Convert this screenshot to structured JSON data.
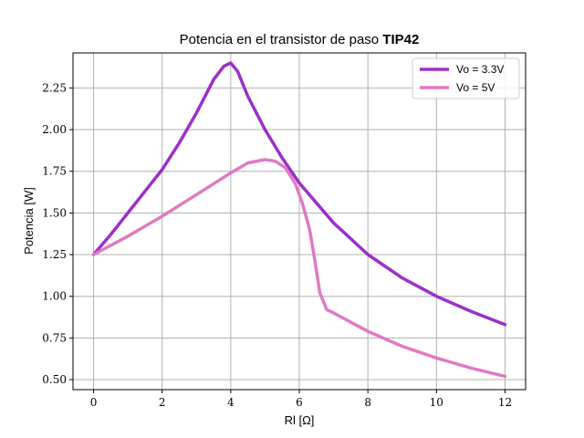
{
  "chart_data": {
    "type": "line",
    "title": "Potencia en el transistor de paso",
    "title_bold": "TIP42",
    "xlabel": "Rl [Ω]",
    "ylabel": "Potencia [W]",
    "xlim": [
      -0.6,
      12.6
    ],
    "ylim": [
      0.44,
      2.46
    ],
    "x_ticks": [
      0,
      2,
      4,
      6,
      8,
      10,
      12
    ],
    "x_tick_labels": [
      "0",
      "2",
      "4",
      "6",
      "8",
      "10",
      "12"
    ],
    "y_ticks": [
      0.5,
      0.75,
      1.0,
      1.25,
      1.5,
      1.75,
      2.0,
      2.25
    ],
    "y_tick_labels": [
      "0.50",
      "0.75",
      "1.00",
      "1.25",
      "1.50",
      "1.75",
      "2.00",
      "2.25"
    ],
    "grid": true,
    "legend_position": "top-right",
    "series": [
      {
        "name": "Vo = 3.3V",
        "color": "#9b30c8",
        "x": [
          0,
          0.5,
          1,
          1.5,
          2,
          2.5,
          3,
          3.5,
          3.8,
          4.0,
          4.2,
          4.5,
          5,
          5.5,
          6,
          7,
          8,
          9,
          10,
          11,
          12
        ],
        "y": [
          1.25,
          1.37,
          1.5,
          1.63,
          1.76,
          1.92,
          2.1,
          2.3,
          2.38,
          2.4,
          2.35,
          2.2,
          2.0,
          1.83,
          1.68,
          1.44,
          1.25,
          1.11,
          1.0,
          0.91,
          0.83
        ]
      },
      {
        "name": "Vo = 5V",
        "color": "#e07ac4",
        "x": [
          0,
          1,
          2,
          3,
          4,
          4.5,
          5,
          5.3,
          5.6,
          5.9,
          6.1,
          6.3,
          6.45,
          6.6,
          6.8,
          7,
          8,
          9,
          10,
          11,
          12
        ],
        "y": [
          1.25,
          1.36,
          1.48,
          1.61,
          1.74,
          1.8,
          1.82,
          1.81,
          1.77,
          1.67,
          1.55,
          1.4,
          1.22,
          1.02,
          0.92,
          0.9,
          0.79,
          0.7,
          0.63,
          0.57,
          0.52
        ]
      }
    ]
  }
}
